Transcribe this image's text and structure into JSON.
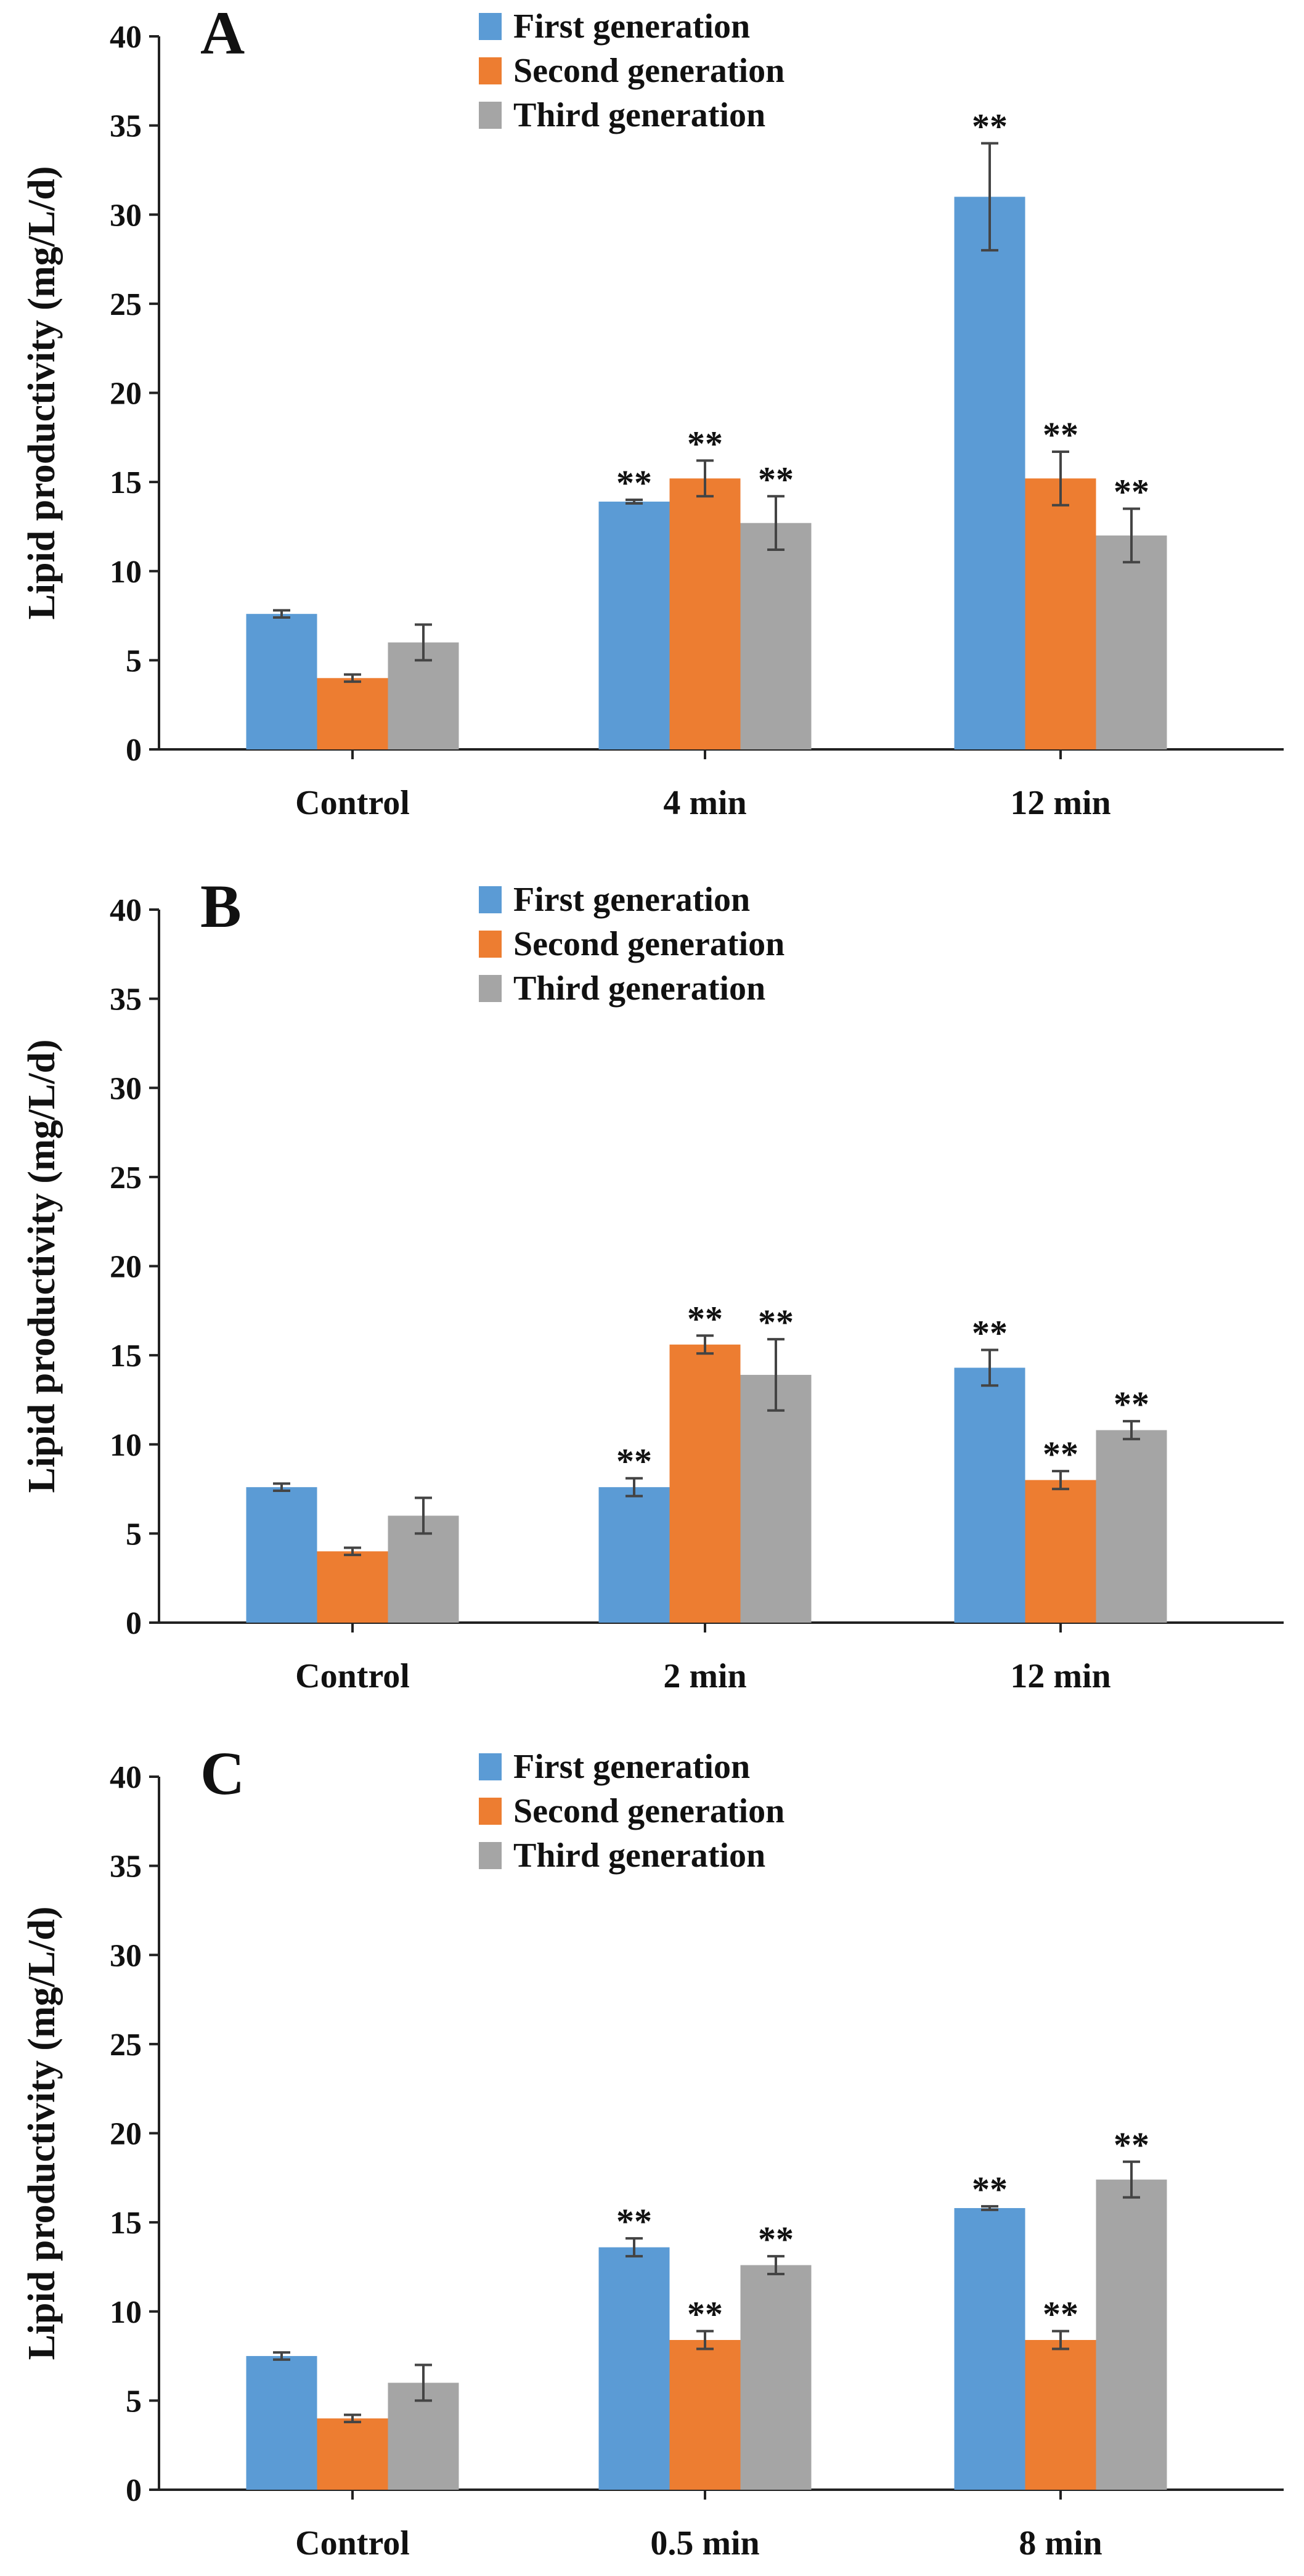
{
  "colors": {
    "first": "#5b9bd5",
    "second": "#ed7d31",
    "third": "#a5a5a5",
    "axis": "#222222",
    "error": "#444444"
  },
  "chart_data": [
    {
      "type": "bar",
      "panel_label": "A",
      "ylabel": "Lipid productivity (mg/L/d)",
      "ylim": [
        0,
        40
      ],
      "yticks": [
        0,
        5,
        10,
        15,
        20,
        25,
        30,
        35,
        40
      ],
      "legend_position": "top-center",
      "categories": [
        "Control",
        "4 min",
        "12 min"
      ],
      "series": [
        {
          "name": "First generation",
          "values": [
            7.6,
            13.9,
            31.0
          ],
          "errors": [
            0.2,
            0.1,
            3.0
          ],
          "sig": [
            "",
            "**",
            "**"
          ]
        },
        {
          "name": "Second generation",
          "values": [
            4.0,
            15.2,
            15.2
          ],
          "errors": [
            0.2,
            1.0,
            1.5
          ],
          "sig": [
            "",
            "**",
            "**"
          ]
        },
        {
          "name": "Third generation",
          "values": [
            6.0,
            12.7,
            12.0
          ],
          "errors": [
            1.0,
            1.5,
            1.5
          ],
          "sig": [
            "",
            "**",
            "**"
          ]
        }
      ]
    },
    {
      "type": "bar",
      "panel_label": "B",
      "ylabel": "Lipid productivity (mg/L/d)",
      "ylim": [
        0,
        40
      ],
      "yticks": [
        0,
        5,
        10,
        15,
        20,
        25,
        30,
        35,
        40
      ],
      "legend_position": "top-center",
      "categories": [
        "Control",
        "2 min",
        "12 min"
      ],
      "series": [
        {
          "name": "First generation",
          "values": [
            7.6,
            7.6,
            14.3
          ],
          "errors": [
            0.2,
            0.5,
            1.0
          ],
          "sig": [
            "",
            "**",
            "**"
          ]
        },
        {
          "name": "Second generation",
          "values": [
            4.0,
            15.6,
            8.0
          ],
          "errors": [
            0.2,
            0.5,
            0.5
          ],
          "sig": [
            "",
            "**",
            "**"
          ]
        },
        {
          "name": "Third generation",
          "values": [
            6.0,
            13.9,
            10.8
          ],
          "errors": [
            1.0,
            2.0,
            0.5
          ],
          "sig": [
            "",
            "**",
            "**"
          ]
        }
      ]
    },
    {
      "type": "bar",
      "panel_label": "C",
      "ylabel": "Lipid productivity (mg/L/d)",
      "ylim": [
        0,
        40
      ],
      "yticks": [
        0,
        5,
        10,
        15,
        20,
        25,
        30,
        35,
        40
      ],
      "legend_position": "top-center",
      "categories": [
        "Control",
        "0.5 min",
        "8 min"
      ],
      "series": [
        {
          "name": "First generation",
          "values": [
            7.5,
            13.6,
            15.8
          ],
          "errors": [
            0.2,
            0.5,
            0.1
          ],
          "sig": [
            "",
            "**",
            "**"
          ]
        },
        {
          "name": "Second generation",
          "values": [
            4.0,
            8.4,
            8.4
          ],
          "errors": [
            0.2,
            0.5,
            0.5
          ],
          "sig": [
            "",
            "**",
            "**"
          ]
        },
        {
          "name": "Third generation",
          "values": [
            6.0,
            12.6,
            17.4
          ],
          "errors": [
            1.0,
            0.5,
            1.0
          ],
          "sig": [
            "",
            "**",
            "**"
          ]
        }
      ]
    }
  ]
}
